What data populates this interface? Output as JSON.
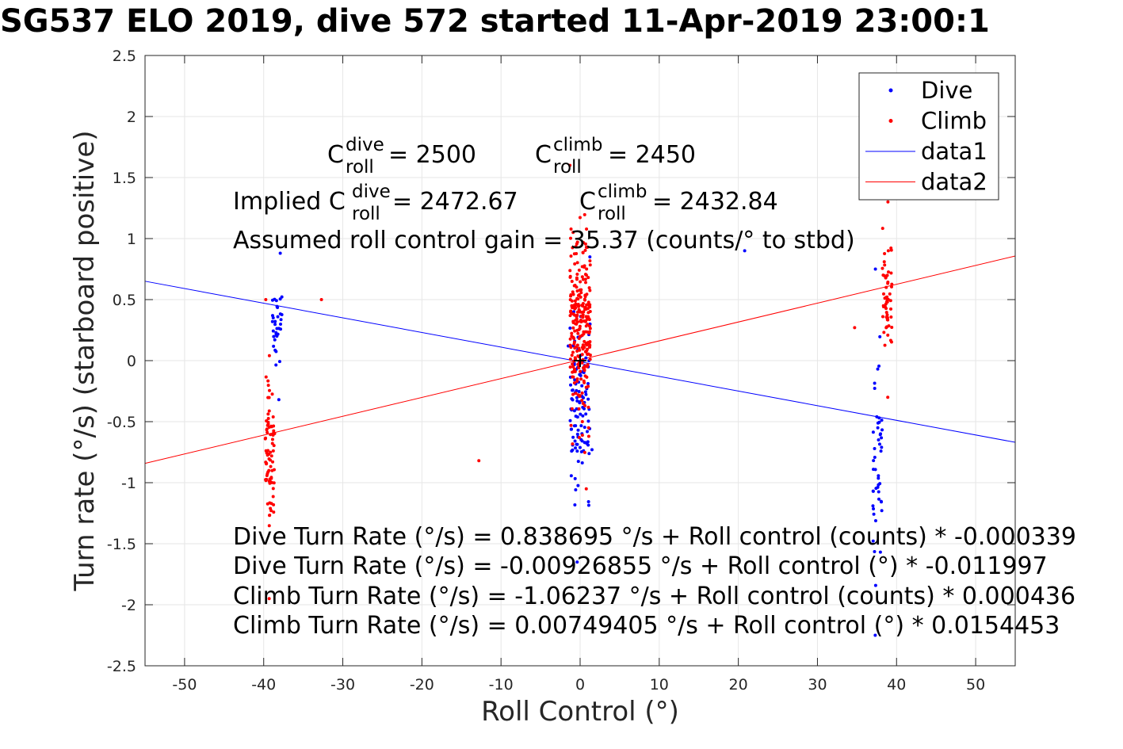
{
  "title": "SG537 ELO 2019, dive 572 started 11-Apr-2019 23:00:1",
  "chart_data": {
    "type": "scatter",
    "xlabel": "Roll Control (°)",
    "ylabel": "Turn rate (°/s) (starboard positive)",
    "xlim": [
      -55,
      55
    ],
    "ylim": [
      -2.5,
      2.5
    ],
    "x_ticks": [
      "-50",
      "-40",
      "-30",
      "-20",
      "-10",
      "0",
      "10",
      "20",
      "30",
      "40",
      "50"
    ],
    "y_ticks": [
      "-2.5",
      "-2",
      "-1.5",
      "-1",
      "-0.5",
      "0",
      "0.5",
      "1",
      "1.5",
      "2",
      "2.5"
    ],
    "grid": true,
    "legend": {
      "placement": "top-right",
      "entries": [
        {
          "label": "Dive",
          "color": "#0000ff",
          "marker": "dot"
        },
        {
          "label": "Climb",
          "color": "#ff0000",
          "marker": "dot"
        },
        {
          "label": "data1",
          "color": "#0000ff",
          "marker": "line"
        },
        {
          "label": "data2",
          "color": "#ff0000",
          "marker": "line"
        }
      ]
    },
    "series": [
      {
        "name": "Dive",
        "kind": "points",
        "color": "#0000ff",
        "clusters": [
          {
            "x": -38.3,
            "y_min": -0.32,
            "y_max": 0.88,
            "count": 34
          },
          {
            "x": 0.0,
            "y_min": -1.65,
            "y_max": 0.85,
            "count": 110
          },
          {
            "x": 37.6,
            "y_min": -2.25,
            "y_max": 0.75,
            "count": 48
          }
        ],
        "points": [
          [
            -1.5,
            0.12
          ],
          [
            1.5,
            -0.73
          ],
          [
            20.8,
            0.9
          ],
          [
            -0.8,
            0.4
          ],
          [
            -1.2,
            -0.2
          ]
        ]
      },
      {
        "name": "Climb",
        "kind": "points",
        "color": "#ff0000",
        "clusters": [
          {
            "x": -39.2,
            "y_min": -1.95,
            "y_max": 0.5,
            "count": 80
          },
          {
            "x": 0.0,
            "y_min": -1.05,
            "y_max": 1.6,
            "count": 260
          },
          {
            "x": 38.8,
            "y_min": -0.3,
            "y_max": 1.3,
            "count": 55
          }
        ],
        "points": [
          [
            -32.7,
            0.5
          ],
          [
            -12.8,
            -0.82
          ],
          [
            34.7,
            0.27
          ]
        ]
      },
      {
        "name": "data1",
        "kind": "line",
        "color": "#0000ff",
        "slope": -0.011997,
        "intercept": -0.00926855
      },
      {
        "name": "data2",
        "kind": "line",
        "color": "#ff0000",
        "slope": 0.0154453,
        "intercept": 0.00749405
      }
    ],
    "center_marker": [
      0,
      0
    ]
  },
  "annotations": {
    "c_roll_dive": {
      "base": "C",
      "sup": "dive",
      "sub": "roll",
      "value": " = 2500"
    },
    "c_roll_climb": {
      "base": "C",
      "sup": "climb",
      "sub": "roll",
      "value": " = 2450"
    },
    "implied_dive": {
      "prefix": "Implied C",
      "sup": "dive",
      "sub": "roll",
      "value": " = 2472.67"
    },
    "implied_climb": {
      "base": "C",
      "sup": "climb",
      "sub": "roll",
      "value": " = 2432.84"
    },
    "gain": "Assumed roll control gain = 35.37 (counts/° to stbd)",
    "fits": [
      "Dive Turn Rate (°/s) = 0.838695 °/s + Roll control (counts) * -0.000339",
      "Dive Turn Rate (°/s) = -0.00926855 °/s + Roll control (°) * -0.011997",
      "Climb Turn Rate (°/s) = -1.06237 °/s + Roll control (counts) * 0.000436",
      "Climb Turn Rate (°/s) = 0.00749405 °/s + Roll control (°) * 0.0154453"
    ]
  }
}
